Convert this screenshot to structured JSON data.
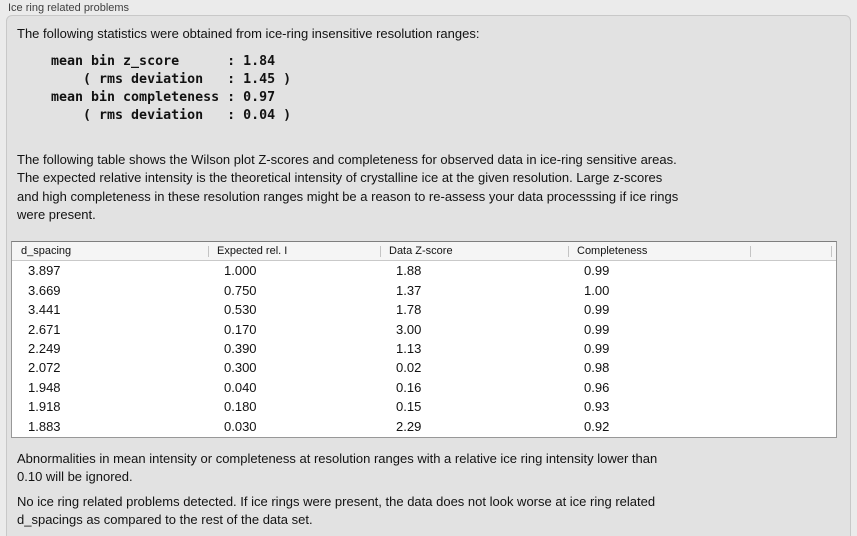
{
  "panel": {
    "title": "Ice ring related problems",
    "intro": "The following statistics were obtained from ice-ring insensitive resolution ranges:",
    "stats_block": "mean bin z_score      : 1.84\n    ( rms deviation   : 1.45 )\nmean bin completeness : 0.97\n    ( rms deviation   : 0.04 )",
    "table_note": "The following table shows the Wilson plot Z-scores and completeness for observed data in ice-ring sensitive areas.\nThe expected relative intensity is the theoretical intensity of crystalline ice at the given resolution. Large z-scores\nand high completeness in these resolution ranges might be a reason to re-assess your data processsing if ice rings\nwere present.",
    "footer_note_1": "Abnormalities in mean intensity or completeness at resolution ranges with a relative ice ring intensity lower than\n0.10 will be ignored.",
    "footer_note_2": "No ice ring related problems detected. If ice rings were present, the data does not look worse at ice ring related\nd_spacings as compared to the rest of the data set."
  },
  "table": {
    "headers": [
      "d_spacing",
      "Expected rel. I",
      "Data Z-score",
      "Completeness"
    ],
    "rows": [
      [
        "3.897",
        "1.000",
        "1.88",
        "0.99"
      ],
      [
        "3.669",
        "0.750",
        "1.37",
        "1.00"
      ],
      [
        "3.441",
        "0.530",
        "1.78",
        "0.99"
      ],
      [
        "2.671",
        "0.170",
        "3.00",
        "0.99"
      ],
      [
        "2.249",
        "0.390",
        "1.13",
        "0.99"
      ],
      [
        "2.072",
        "0.300",
        "0.02",
        "0.98"
      ],
      [
        "1.948",
        "0.040",
        "0.16",
        "0.96"
      ],
      [
        "1.918",
        "0.180",
        "0.15",
        "0.93"
      ],
      [
        "1.883",
        "0.030",
        "2.29",
        "0.92"
      ]
    ]
  },
  "colors": {
    "page-bg": "#ebebeb",
    "groupbox-bg": "#e2e2e2",
    "groupbox-border": "#c8c8c8",
    "label-color": "#3f3f3f",
    "text-color": "#121212",
    "table-bg": "#ffffff",
    "table-border": "#989898",
    "header-bg": "#f5f5f5",
    "header-tick": "#c4c4c4"
  }
}
